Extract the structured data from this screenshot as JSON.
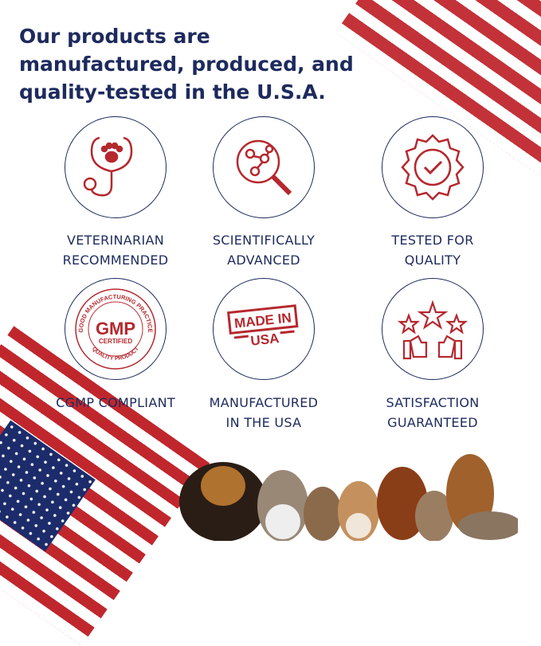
{
  "headline": "Our products are manufactured, produced, and quality-tested in the U.S.A.",
  "colors": {
    "navy": "#1d2a5d",
    "red": "#b5282e"
  },
  "features": [
    {
      "icon": "stethoscope-paw-icon",
      "line1": "VETERINARIAN",
      "line2": "RECOMMENDED"
    },
    {
      "icon": "magnifier-molecule-icon",
      "line1": "SCIENTIFICALLY",
      "line2": "ADVANCED"
    },
    {
      "icon": "quality-seal-check-icon",
      "line1": "TESTED FOR",
      "line2": "QUALITY"
    },
    {
      "icon": "gmp-badge-icon",
      "line1": "CGMP COMPLIANT",
      "line2": ""
    },
    {
      "icon": "made-in-usa-stamp-icon",
      "line1": "MANUFACTURED",
      "line2": "IN THE USA"
    },
    {
      "icon": "stars-thumbs-up-icon",
      "line1": "SATISFACTION",
      "line2": "GUARANTEED"
    }
  ],
  "gmp_badge": {
    "arc_top": "GOOD MANUFACTURING PRACTICE",
    "main": "GMP",
    "sub": "CERTIFIED",
    "arc_bottom": "QUALITY PRODUCT"
  },
  "stamp": {
    "line1": "MADE IN",
    "line2": "USA"
  }
}
